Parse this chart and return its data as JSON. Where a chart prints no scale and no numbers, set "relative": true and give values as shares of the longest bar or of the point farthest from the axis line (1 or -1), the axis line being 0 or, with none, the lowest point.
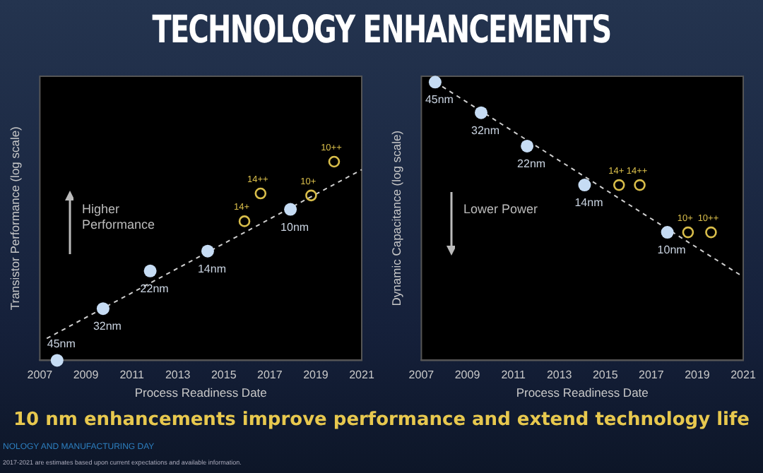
{
  "chart_data": [
    {
      "type": "scatter",
      "title": "TECHNOLOGY ENHANCEMENTS",
      "xlabel": "Process Readiness Date",
      "ylabel": "Transistor Performance (log scale)",
      "relative": true,
      "xlim": [
        2007,
        2021
      ],
      "xticks": [
        2007,
        2009,
        2011,
        2013,
        2015,
        2017,
        2019,
        2021
      ],
      "grid": false,
      "legend": false,
      "marker": "circle",
      "annotations": [
        "Higher Performance",
        {
          "text": "45nm",
          "x": 2007.75,
          "y": 0
        },
        {
          "text": "32nm",
          "x": 2009.75,
          "y": 0.26
        },
        {
          "text": "22nm",
          "x": 2011.8,
          "y": 0.45
        },
        {
          "text": "14nm",
          "x": 2014.3,
          "y": 0.55
        },
        {
          "text": "10nm",
          "x": 2017.9,
          "y": 0.76
        },
        {
          "text": "14+",
          "x": 2015.9,
          "y": 0.7
        },
        {
          "text": "14++",
          "x": 2016.6,
          "y": 0.84
        },
        {
          "text": "10+",
          "x": 2018.8,
          "y": 0.83
        },
        {
          "text": "10++",
          "x": 2019.8,
          "y": 1
        }
      ],
      "series": [
        {
          "color": "#c6dcf4",
          "x": [
            2007.75,
            2009.75,
            2011.8,
            2014.3,
            2017.9
          ],
          "values": [
            0,
            0.26,
            0.45,
            0.55,
            0.76
          ]
        },
        {
          "color": "#d8bd4a",
          "x": [
            2015.9,
            2016.6,
            2018.8,
            2019.8
          ],
          "values": [
            0.7,
            0.84,
            0.83,
            1
          ]
        },
        {
          "type": "line",
          "color": "#cfcfcf",
          "line_style": "dashed",
          "marker": "none",
          "x": [
            2007.3,
            2021
          ],
          "values": [
            0.11,
            0.96
          ]
        }
      ]
    },
    {
      "type": "scatter",
      "xlabel": "Process Readiness Date",
      "ylabel": "Dynamic Capacitance (log scale)",
      "relative": true,
      "xlim": [
        2007,
        2021
      ],
      "xticks": [
        2007,
        2009,
        2011,
        2013,
        2015,
        2017,
        2019,
        2021
      ],
      "grid": false,
      "legend": false,
      "marker": "circle",
      "annotations": [
        "Lower Power",
        "10 nm enhancements improve performance and extend technology life",
        "NOLOGY AND MANUFACTURING DAY",
        "2017-2021 are estimates based upon current expectations and available information.",
        {
          "text": "45nm",
          "x": 2007.6,
          "y": 1
        },
        {
          "text": "32nm",
          "x": 2009.6,
          "y": 0.89
        },
        {
          "text": "22nm",
          "x": 2011.6,
          "y": 0.77
        },
        {
          "text": "14nm",
          "x": 2014.1,
          "y": 0.63
        },
        {
          "text": "10nm",
          "x": 2017.7,
          "y": 0.46
        },
        {
          "text": "14+",
          "x": 2015.6,
          "y": 0.63
        },
        {
          "text": "14++",
          "x": 2016.5,
          "y": 0.63
        },
        {
          "text": "10+",
          "x": 2018.6,
          "y": 0.46
        },
        {
          "text": "10++",
          "x": 2019.6,
          "y": 0.46
        }
      ],
      "series": [
        {
          "color": "#c6dcf4",
          "x": [
            2007.6,
            2009.6,
            2011.6,
            2014.1,
            2017.7
          ],
          "values": [
            1,
            0.89,
            0.77,
            0.63,
            0.46
          ]
        },
        {
          "color": "#d8bd4a",
          "x": [
            2015.6,
            2016.5,
            2018.6,
            2019.6
          ],
          "values": [
            0.63,
            0.63,
            0.46,
            0.46
          ]
        },
        {
          "type": "line",
          "color": "#cfcfcf",
          "line_style": "dashed",
          "marker": "none",
          "x": [
            2007.6,
            2021
          ],
          "values": [
            1,
            0.3
          ]
        }
      ]
    }
  ]
}
